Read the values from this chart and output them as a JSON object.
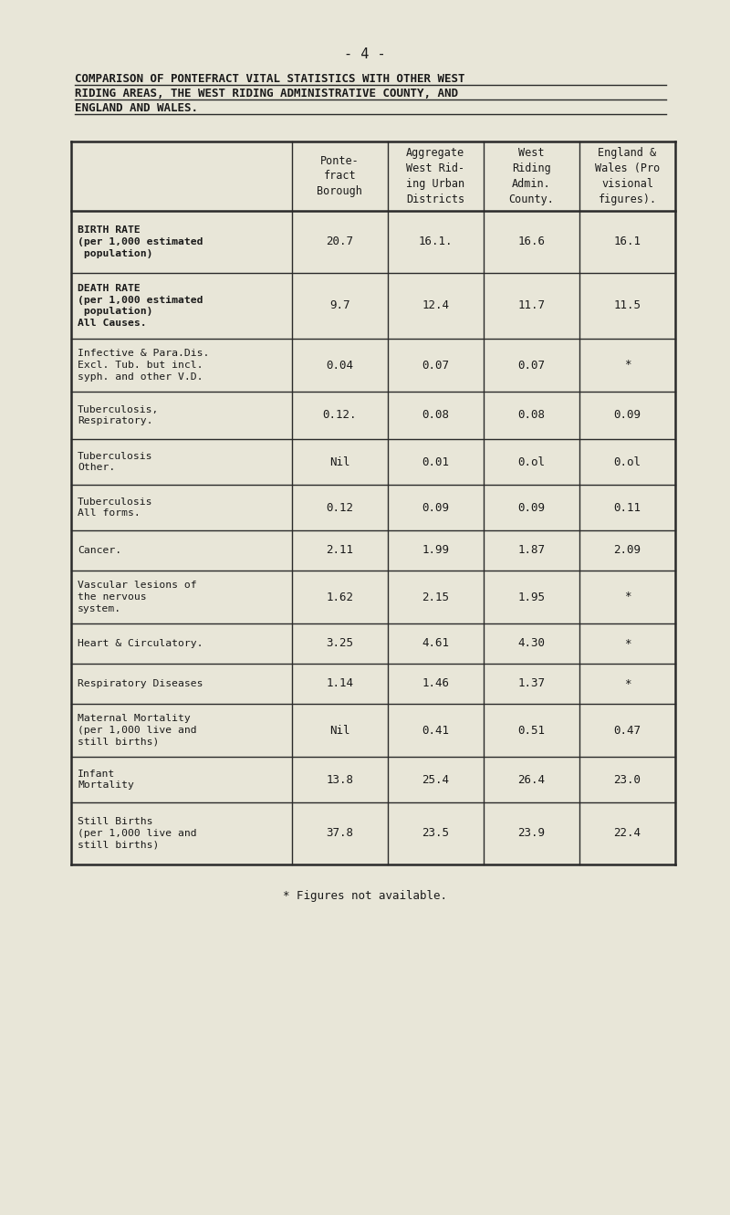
{
  "page_number": "- 4 -",
  "title_lines": [
    "COMPARISON OF PONTEFRACT VITAL STATISTICS WITH OTHER WEST",
    "RIDING AREAS, THE WEST RIDING ADMINISTRATIVE COUNTY, AND",
    "ENGLAND AND WALES."
  ],
  "col_headers": [
    "Ponte-\nfract\nBorough",
    "Aggregate\nWest Rid-\ning Urban\nDistricts",
    "West\nRiding\nAdmin.\nCounty.",
    "England &\nWales (Pro\nvisional\nfigures)."
  ],
  "rows": [
    {
      "label_lines": [
        "BIRTH RATE",
        "(per 1,000 estimated",
        " population)"
      ],
      "values": [
        "20.7",
        "16.1.",
        "16.6",
        "16.1"
      ],
      "bold": true
    },
    {
      "label_lines": [
        "DEATH RATE",
        "(per 1,000 estimated",
        " population)",
        "All Causes."
      ],
      "values": [
        "9.7",
        "12.4",
        "11.7",
        "11.5"
      ],
      "bold": true
    },
    {
      "label_lines": [
        "Infective & Para.Dis.",
        "Excl. Tub. but incl.",
        "syph. and other V.D."
      ],
      "values": [
        "0.04",
        "0.07",
        "0.07",
        "*"
      ],
      "bold": false
    },
    {
      "label_lines": [
        "Tuberculosis,",
        "Respiratory."
      ],
      "values": [
        "0.12.",
        "0.08",
        "0.08",
        "0.09"
      ],
      "bold": false
    },
    {
      "label_lines": [
        "Tuberculosis",
        "Other."
      ],
      "values": [
        "Nil",
        "0.01",
        "0.ol",
        "0.ol"
      ],
      "bold": false
    },
    {
      "label_lines": [
        "Tuberculosis",
        "All forms."
      ],
      "values": [
        "0.12",
        "0.09",
        "0.09",
        "0.11"
      ],
      "bold": false
    },
    {
      "label_lines": [
        "Cancer."
      ],
      "values": [
        "2.11",
        "1.99",
        "1.87",
        "2.09"
      ],
      "bold": false
    },
    {
      "label_lines": [
        "Vascular lesions of",
        "the nervous",
        "system."
      ],
      "values": [
        "1.62",
        "2.15",
        "1.95",
        "*"
      ],
      "bold": false
    },
    {
      "label_lines": [
        "Heart & Circulatory."
      ],
      "values": [
        "3.25",
        "4.61",
        "4.30",
        "*"
      ],
      "bold": false
    },
    {
      "label_lines": [
        "Respiratory Diseases"
      ],
      "values": [
        "1.14",
        "1.46",
        "1.37",
        "*"
      ],
      "bold": false
    },
    {
      "label_lines": [
        "Maternal Mortality",
        "(per 1,000 live and",
        "still births)"
      ],
      "values": [
        "Nil",
        "0.41",
        "0.51",
        "0.47"
      ],
      "bold": false
    },
    {
      "label_lines": [
        "Infant",
        "Mortality"
      ],
      "values": [
        "13.8",
        "25.4",
        "26.4",
        "23.0"
      ],
      "bold": false
    },
    {
      "label_lines": [
        "Still Births",
        "(per 1,000 live and",
        "still births)"
      ],
      "values": [
        "37.8",
        "23.5",
        "23.9",
        "22.4"
      ],
      "bold": false
    }
  ],
  "footnote": "* Figures not available.",
  "bg_color": "#e8e6d8",
  "line_color": "#2a2a2a",
  "text_color": "#1a1a1a"
}
